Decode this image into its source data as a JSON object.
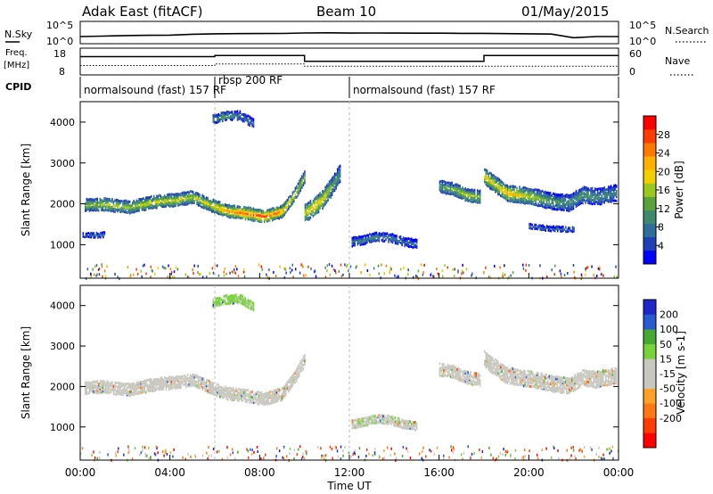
{
  "header": {
    "station": "Adak East (fitACF)",
    "beam": "Beam 10",
    "date": "01/May/2015"
  },
  "top_panels": {
    "nsky_label": "N.Sky",
    "nsearch_label": "N.Search",
    "freq_label_1": "Freq.",
    "freq_label_2": "[MHz]",
    "nave_label": "Nave",
    "cpid_label": "CPID",
    "nsky_ticks": [
      "10^5",
      "10^0"
    ],
    "nsearch_ticks": [
      "10^5",
      "10^0"
    ],
    "freq_ticks": [
      "18",
      "8"
    ],
    "nave_ticks": [
      "60",
      "0"
    ]
  },
  "cpid_bar": {
    "segments": [
      {
        "label": "normalsound (fast) 157 RF",
        "start": "00:00",
        "end": "06:00"
      },
      {
        "label": "rbsp 200 RF",
        "start": "06:00",
        "end": "12:00"
      },
      {
        "label": "normalsound (fast) 157 RF",
        "start": "12:00",
        "end": "24:00"
      }
    ]
  },
  "colors": {
    "power": [
      "#0000ff",
      "#1f3fb4",
      "#2e6e9a",
      "#3e8a6e",
      "#5aa33c",
      "#9bc81e",
      "#f0d000",
      "#ffb000",
      "#ff7800",
      "#ff3c00",
      "#ff0000"
    ],
    "velocity": [
      "#1e28c8",
      "#285ad2",
      "#46aa32",
      "#78d23c",
      "#c8c8c0",
      "#c8c8c0",
      "#ffa028",
      "#ff7814",
      "#ff3c00",
      "#ff0000"
    ]
  },
  "chart_data": [
    {
      "type": "line",
      "title": "N.Sky / N.Search",
      "x_unit": "hours UT",
      "y_scale": "log",
      "ylim": [
        1,
        100000
      ],
      "series": [
        {
          "name": "N.Sky",
          "x": [
            0,
            1,
            2,
            3,
            4,
            5,
            6,
            7,
            8,
            9,
            10,
            11,
            12,
            13,
            14,
            15,
            16,
            17,
            18,
            19,
            20,
            21,
            22,
            23,
            24
          ],
          "y": [
            40,
            50,
            70,
            80,
            90,
            150,
            200,
            220,
            230,
            240,
            320,
            350,
            300,
            320,
            300,
            290,
            280,
            260,
            250,
            220,
            200,
            170,
            20,
            40,
            40
          ]
        }
      ]
    },
    {
      "type": "line",
      "title": "Freq. [MHz] / Nave",
      "x_unit": "hours UT",
      "ylim": [
        8,
        18
      ],
      "series": [
        {
          "name": "Freq.",
          "x": [
            0,
            6,
            6,
            10,
            10,
            18,
            18,
            24
          ],
          "y": [
            15.5,
            15.5,
            16,
            16,
            13.5,
            13.5,
            16,
            16
          ]
        },
        {
          "name": "Nave",
          "x": [
            0,
            6,
            6,
            10,
            10,
            24
          ],
          "y": [
            22,
            22,
            26,
            26,
            20,
            20
          ]
        }
      ]
    },
    {
      "type": "heatmap",
      "title": "Power [dB]",
      "xlabel": "",
      "ylabel": "Slant Range [km]",
      "xlim": [
        0,
        24
      ],
      "ylim": [
        180,
        4500
      ],
      "yticks": [
        1000,
        2000,
        3000,
        4000
      ],
      "colorbar": {
        "label": "Power [dB]",
        "ticks": [
          4,
          8,
          12,
          16,
          20,
          24,
          28
        ],
        "range": [
          0,
          32
        ]
      },
      "bands": [
        {
          "x": [
            0.2,
            1.0,
            1.5,
            2.2,
            3.0,
            3.6,
            4.2,
            5.0,
            5.8,
            6.6,
            7.4,
            8.2,
            9.0,
            9.6,
            10.0
          ],
          "center_km": [
            2000,
            2020,
            1990,
            1950,
            2050,
            2100,
            2120,
            2200,
            2000,
            1850,
            1800,
            1720,
            1850,
            2300,
            2700
          ],
          "half_km": 140,
          "peak_db": [
            14,
            16,
            17,
            16,
            18,
            19,
            18,
            16,
            20,
            24,
            26,
            28,
            24,
            16,
            18
          ]
        },
        {
          "x": [
            0.1,
            0.6,
            1.1
          ],
          "center_km": [
            1270,
            1260,
            1280
          ],
          "half_km": 45,
          "peak_db": [
            9,
            8,
            10
          ]
        },
        {
          "x": [
            5.9,
            6.5,
            7.1,
            7.7
          ],
          "center_km": [
            4100,
            4180,
            4200,
            4000
          ],
          "half_km": 100,
          "peak_db": [
            11,
            12,
            9,
            8
          ]
        },
        {
          "x": [
            10.0,
            10.4,
            10.8,
            11.2,
            11.6
          ],
          "center_km": [
            1800,
            1950,
            2150,
            2450,
            2800
          ],
          "half_km": 200,
          "peak_db": [
            18,
            22,
            20,
            14,
            10
          ]
        },
        {
          "x": [
            12.1,
            12.6,
            13.2,
            13.8,
            14.4,
            15.0
          ],
          "center_km": [
            1100,
            1150,
            1230,
            1200,
            1100,
            1050
          ],
          "half_km": 90,
          "peak_db": [
            8,
            9,
            10,
            8,
            7,
            6
          ]
        },
        {
          "x": [
            16.0,
            16.6,
            17.2,
            17.8
          ],
          "center_km": [
            2450,
            2400,
            2250,
            2200
          ],
          "half_km": 130,
          "peak_db": [
            12,
            14,
            18,
            16
          ]
        },
        {
          "x": [
            18.0,
            18.5,
            19.0,
            19.6,
            20.2,
            21.0,
            21.8,
            22.4,
            23.0,
            23.9
          ],
          "center_km": [
            2700,
            2500,
            2300,
            2250,
            2200,
            2100,
            2050,
            2250,
            2200,
            2300
          ],
          "half_km": 170,
          "peak_db": [
            20,
            18,
            22,
            20,
            16,
            12,
            10,
            12,
            10,
            9
          ]
        },
        {
          "x": [
            20.0,
            21.0,
            22.0
          ],
          "center_km": [
            1480,
            1420,
            1400
          ],
          "half_km": 40,
          "peak_db": [
            8,
            7,
            8
          ]
        }
      ]
    },
    {
      "type": "heatmap",
      "title": "Velocity [m s^-1]",
      "xlabel": "Time UT",
      "ylabel": "Slant Range [km]",
      "xlim": [
        0,
        24
      ],
      "ylim": [
        180,
        4500
      ],
      "xticks": [
        "00:00",
        "04:00",
        "08:00",
        "12:00",
        "16:00",
        "20:00",
        "00:00"
      ],
      "yticks": [
        1000,
        2000,
        3000,
        4000
      ],
      "colorbar": {
        "label": "Velocity [m s-1]",
        "ticks": [
          "200",
          "100",
          "50",
          "15",
          "-15",
          "-50",
          "-100",
          "-200"
        ],
        "range": [
          -250,
          250
        ]
      },
      "bands": [
        {
          "x": [
            0.2,
            1.0,
            1.5,
            2.2,
            3.0,
            3.6,
            4.2,
            5.0,
            5.8,
            6.6,
            7.4,
            8.2,
            9.0,
            9.6,
            10.0
          ],
          "center_km": [
            2000,
            2020,
            1990,
            1950,
            2050,
            2100,
            2120,
            2200,
            2000,
            1850,
            1800,
            1720,
            1850,
            2300,
            2700
          ],
          "half_km": 140,
          "velocity": 0
        },
        {
          "x": [
            5.9,
            6.5,
            7.1,
            7.7
          ],
          "center_km": [
            4100,
            4180,
            4200,
            4000
          ],
          "half_km": 100,
          "velocity": 60
        },
        {
          "x": [
            12.1,
            12.6,
            13.2,
            13.8,
            14.4,
            15.0
          ],
          "center_km": [
            1100,
            1150,
            1230,
            1200,
            1100,
            1050
          ],
          "half_km": 90,
          "velocity": 40
        },
        {
          "x": [
            16.0,
            16.6,
            17.2,
            17.8
          ],
          "center_km": [
            2450,
            2400,
            2250,
            2200
          ],
          "half_km": 130,
          "velocity": 0
        },
        {
          "x": [
            18.0,
            18.5,
            19.0,
            19.6,
            20.2,
            21.0,
            21.8,
            22.4,
            23.0,
            23.9
          ],
          "center_km": [
            2700,
            2500,
            2300,
            2250,
            2200,
            2100,
            2050,
            2250,
            2200,
            2300
          ],
          "half_km": 170,
          "velocity": 0
        }
      ]
    }
  ],
  "power_colorbar_title": "Power [dB]",
  "velocity_colorbar_title": "Velocity [m s-1]",
  "xaxis": {
    "title": "Time UT",
    "ticks": [
      "00:00",
      "04:00",
      "08:00",
      "12:00",
      "16:00",
      "20:00",
      "00:00"
    ]
  },
  "yaxis": {
    "title": "Slant Range [km]",
    "ticks": [
      "1000",
      "2000",
      "3000",
      "4000"
    ]
  }
}
